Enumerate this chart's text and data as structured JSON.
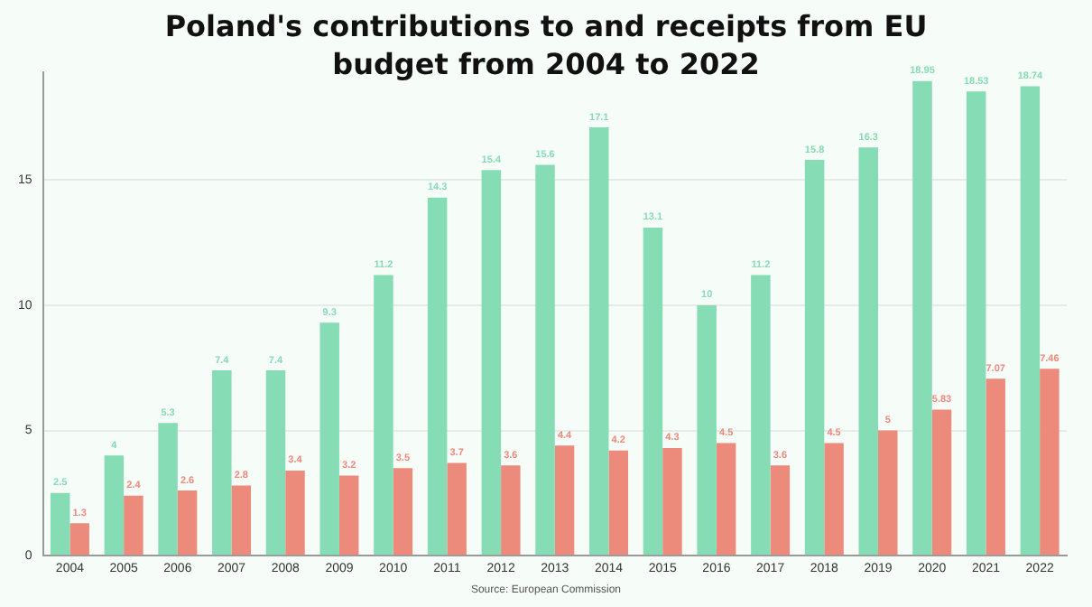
{
  "chart_data": {
    "type": "bar",
    "title": "Poland's contributions to and receipts from EU budget from 2004 to 2022",
    "categories": [
      "2004",
      "2005",
      "2006",
      "2007",
      "2008",
      "2009",
      "2010",
      "2011",
      "2012",
      "2013",
      "2014",
      "2015",
      "2016",
      "2017",
      "2018",
      "2019",
      "2020",
      "2021",
      "2022"
    ],
    "series": [
      {
        "color": "#86dcb4",
        "values": [
          2.5,
          4,
          5.3,
          7.4,
          7.4,
          9.3,
          11.2,
          14.3,
          15.4,
          15.6,
          17.1,
          13.1,
          10,
          11.2,
          15.8,
          16.3,
          18.95,
          18.53,
          18.74
        ]
      },
      {
        "color": "#ec8a7c",
        "values": [
          1.3,
          2.4,
          2.6,
          2.8,
          3.4,
          3.2,
          3.5,
          3.7,
          3.6,
          4.4,
          4.2,
          4.3,
          4.5,
          3.6,
          4.5,
          5,
          5.83,
          7.07,
          7.46
        ]
      }
    ],
    "ylim": [
      0,
      19.3
    ],
    "yticks": [
      0,
      5,
      10,
      15
    ],
    "grid": "y",
    "data_labels": true,
    "annotations": [
      "Source: European Commission"
    ]
  }
}
